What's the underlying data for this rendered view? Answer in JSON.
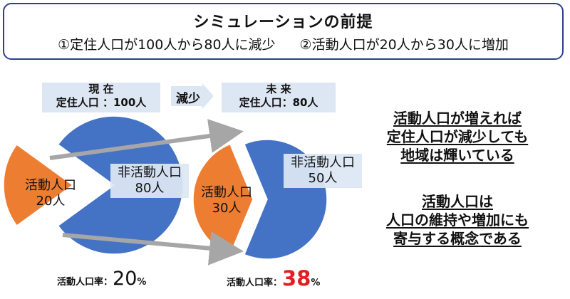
{
  "premise": {
    "title": "シミュレーションの前提",
    "item1": "①定住人口が100人から80人に減少",
    "item2": "②活動人口が20人から30人に増加"
  },
  "current": {
    "heading": "現 在",
    "resident_label": "定住人口 ：100人",
    "pie": {
      "active_label": "活動人口",
      "active_value": "20人",
      "inactive_label": "非活動人口",
      "inactive_value": "80人"
    },
    "rate_label": "活動人口率：",
    "rate_value": "20",
    "rate_unit": "%"
  },
  "arrow_label": "減少",
  "future": {
    "heading": "未 来",
    "resident_label": "定住人口：80人",
    "pie": {
      "active_label": "活動人口",
      "active_value": "30人",
      "inactive_label": "非活動人口",
      "inactive_value": "50人"
    },
    "rate_label": "活動人口率：",
    "rate_value": "38",
    "rate_unit": "%"
  },
  "message1": [
    "活動人口が増えれば",
    "定住人口が減少しても",
    "地域は輝いている"
  ],
  "message2": [
    "活動人口は",
    "人口の維持や増加にも",
    "寄与する概念である"
  ],
  "chart_data": [
    {
      "type": "pie",
      "categories": [
        "活動人口",
        "非活動人口"
      ],
      "values": [
        20,
        80
      ],
      "exploded": "活動人口"
    },
    {
      "type": "pie",
      "categories": [
        "活動人口",
        "非活動人口"
      ],
      "values": [
        30,
        50
      ],
      "exploded": "活動人口"
    }
  ],
  "colors": {
    "inactive": "#4472c4",
    "active": "#ed7d31",
    "label_box": "#dde7f4",
    "border": "#2c3f8f",
    "highlight": "#e02020",
    "arrow": "#a6a6a6"
  }
}
